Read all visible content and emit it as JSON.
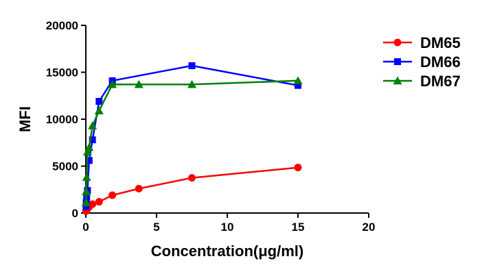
{
  "chart_data": {
    "type": "line",
    "title": "",
    "xlabel": "Concentration(μg/ml)",
    "ylabel": "MFI",
    "xlim": [
      0,
      20
    ],
    "ylim": [
      0,
      20000
    ],
    "x_ticks": [
      0,
      5,
      10,
      15,
      20
    ],
    "y_ticks": [
      0,
      5000,
      10000,
      15000,
      20000
    ],
    "x_tick_labels": [
      "0",
      "5",
      "10",
      "15",
      "20"
    ],
    "y_tick_labels": [
      "0",
      "5000",
      "10000",
      "15000",
      "20000"
    ],
    "grid": false,
    "legend_position": "right",
    "series": [
      {
        "name": "DM65",
        "color": "#ff0000",
        "marker": "circle",
        "x": [
          0.0146,
          0.0293,
          0.0586,
          0.117,
          0.234,
          0.469,
          0.938,
          1.875,
          3.75,
          7.5,
          15
        ],
        "y": [
          200,
          250,
          350,
          450,
          650,
          950,
          1200,
          1900,
          2600,
          3750,
          4850
        ]
      },
      {
        "name": "DM66",
        "color": "#0000ff",
        "marker": "square",
        "x": [
          0.0146,
          0.0293,
          0.0586,
          0.117,
          0.234,
          0.469,
          0.938,
          1.875,
          7.5,
          15
        ],
        "y": [
          700,
          1100,
          1700,
          2400,
          5600,
          7800,
          11900,
          14100,
          15700,
          13600
        ]
      },
      {
        "name": "DM67",
        "color": "#008000",
        "marker": "triangle",
        "x": [
          0.0146,
          0.0293,
          0.0586,
          0.117,
          0.234,
          0.469,
          0.938,
          1.875,
          3.75,
          7.5,
          15
        ],
        "y": [
          1100,
          2300,
          3800,
          6500,
          7000,
          9300,
          10900,
          13700,
          13700,
          13700,
          14100
        ]
      }
    ]
  }
}
